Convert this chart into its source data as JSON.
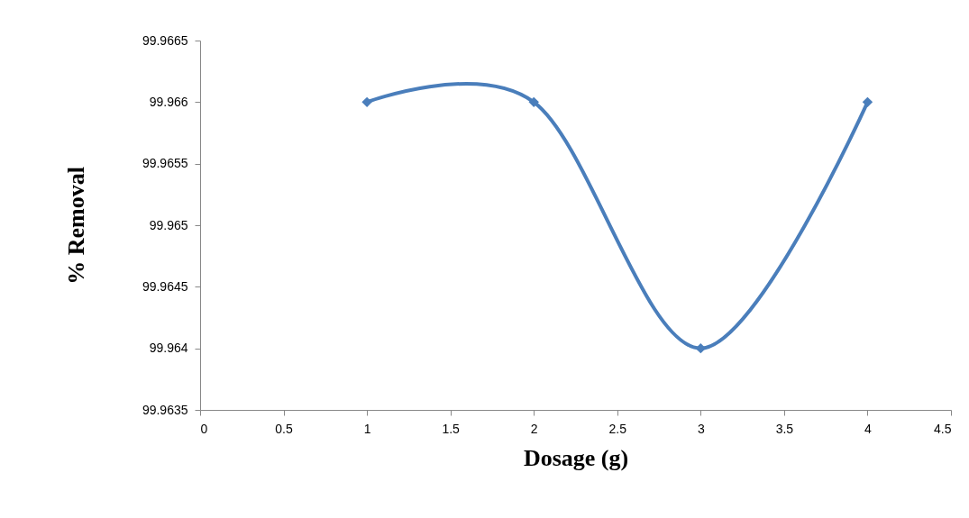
{
  "chart_data": {
    "type": "line",
    "xlabel": "Dosage (g)",
    "ylabel": "% Removal",
    "x": [
      1,
      2,
      3,
      4
    ],
    "series": [
      {
        "color": "#4a7ebb",
        "values": [
          99.966,
          99.966,
          99.964,
          99.966
        ]
      }
    ],
    "xlim": [
      0,
      4.5
    ],
    "xticks": [
      0,
      0.5,
      1,
      1.5,
      2,
      2.5,
      3,
      3.5,
      4,
      4.5
    ],
    "ylim": [
      99.9635,
      99.9665
    ],
    "yticks": [
      99.9635,
      99.964,
      99.9645,
      99.965,
      99.9655,
      99.966,
      99.9665
    ],
    "legend": false,
    "marker": "diamond",
    "line_style": "solid"
  }
}
